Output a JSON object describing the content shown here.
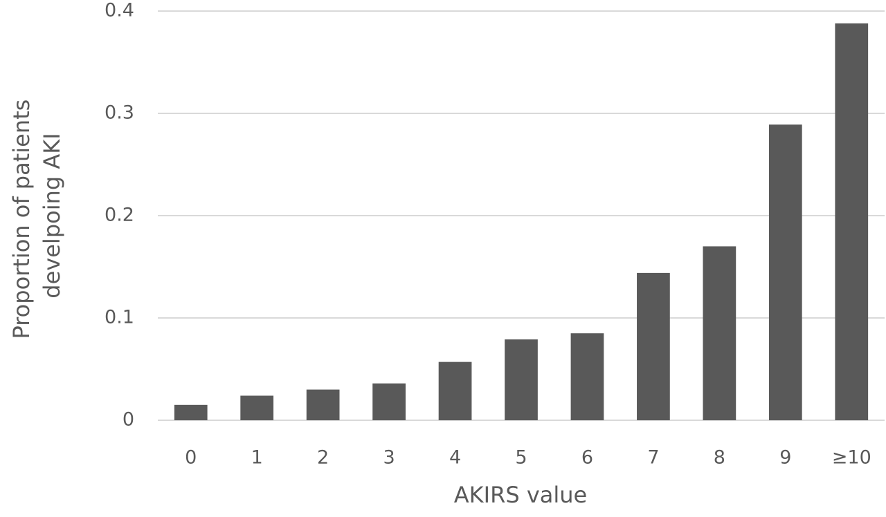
{
  "chart_data": {
    "type": "bar",
    "title": "",
    "xlabel": "AKIRS value",
    "ylabel_lines": [
      "Proportion of patients",
      "develpoing AKI"
    ],
    "categories": [
      "0",
      "1",
      "2",
      "3",
      "4",
      "5",
      "6",
      "7",
      "8",
      "9",
      "≥10"
    ],
    "values": [
      0.015,
      0.024,
      0.03,
      0.036,
      0.057,
      0.079,
      0.085,
      0.144,
      0.17,
      0.289,
      0.388
    ],
    "ylim": [
      0,
      0.4
    ],
    "yticks": [
      "0",
      "0.1",
      "0.2",
      "0.3",
      "0.4"
    ],
    "ytick_values": [
      0,
      0.1,
      0.2,
      0.3,
      0.4
    ],
    "grid": true,
    "legend": "none",
    "colors": {
      "bar": "#595959",
      "grid": "#d9d9d9",
      "text": "#595959"
    }
  }
}
